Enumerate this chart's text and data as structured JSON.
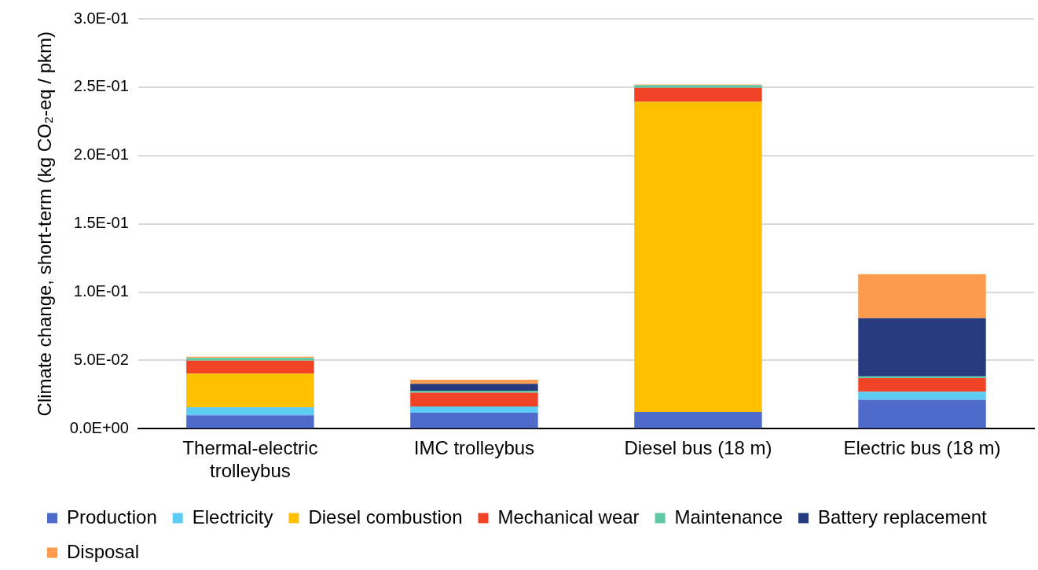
{
  "chart_data": {
    "type": "bar",
    "stacked": true,
    "ylabel": "Climate change, short-term (kg CO₂-eq / pkm)",
    "categories": [
      "Thermal-electric trolleybus",
      "IMC trolleybus",
      "Diesel bus (18 m)",
      "Electric bus (18 m)"
    ],
    "series": [
      {
        "name": "Production",
        "color": "#4f6bc9",
        "values": [
          0.0098,
          0.0117,
          0.0123,
          0.0212
        ]
      },
      {
        "name": "Electricity",
        "color": "#5ecbf2",
        "values": [
          0.006,
          0.0047,
          0,
          0.006
        ]
      },
      {
        "name": "Diesel combustion",
        "color": "#ffc000",
        "values": [
          0.0245,
          0,
          0.227,
          0
        ]
      },
      {
        "name": "Mechanical wear",
        "color": "#f04326",
        "values": [
          0.0096,
          0.01,
          0.0102,
          0.0098
        ]
      },
      {
        "name": "Maintenance",
        "color": "#5fc9a5",
        "values": [
          0.002,
          0.0015,
          0.002,
          0.0013
        ]
      },
      {
        "name": "Battery replacement",
        "color": "#263a7d",
        "values": [
          0,
          0.005,
          0,
          0.0426
        ]
      },
      {
        "name": "Disposal",
        "color": "#fc9a4e",
        "values": [
          0.0008,
          0.003,
          0.0005,
          0.0322
        ]
      }
    ],
    "ylim": [
      0,
      0.3
    ],
    "yticks": [
      {
        "value": 0,
        "label": "0.0E+00"
      },
      {
        "value": 0.05,
        "label": "5.0E-02"
      },
      {
        "value": 0.1,
        "label": "1.0E-01"
      },
      {
        "value": 0.15,
        "label": "1.5E-01"
      },
      {
        "value": 0.2,
        "label": "2.0E-01"
      },
      {
        "value": 0.25,
        "label": "2.5E-01"
      },
      {
        "value": 0.3,
        "label": "3.0E-01"
      }
    ],
    "grid": "y",
    "legend": "bottom"
  }
}
